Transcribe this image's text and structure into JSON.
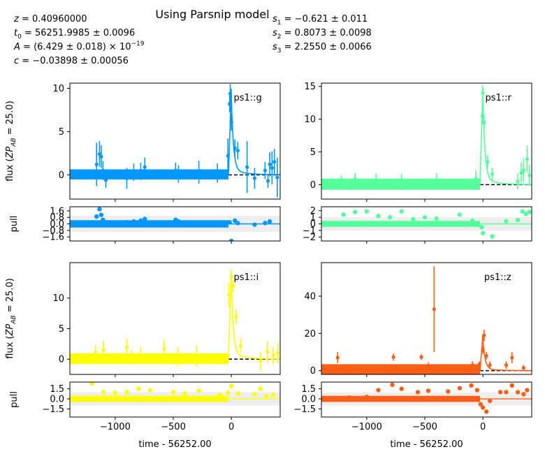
{
  "title": "Using Parsnip model",
  "params_left": [
    {
      "name": "z",
      "text": "= 0.40960000"
    },
    {
      "name": "t",
      "sub": "0",
      "text": "= 56251.9985 ± 0.0096"
    },
    {
      "name": "A",
      "text": "= (6.429 ± 0.018) × 10",
      "sup": "−19"
    },
    {
      "name": "c",
      "text": "= −0.03898 ± 0.00056"
    }
  ],
  "params_right": [
    {
      "name": "s",
      "sub": "1",
      "text": "= −0.621 ± 0.011"
    },
    {
      "name": "s",
      "sub": "2",
      "text": "= 0.8073 ± 0.0098"
    },
    {
      "name": "s",
      "sub": "3",
      "text": "= 2.2550 ± 0.0066"
    }
  ],
  "flux_label": {
    "prefix": "flux (",
    "zp": "ZP",
    "sub": "AB",
    "suffix": " = 25.0)"
  },
  "pull_label": "pull",
  "xlabel": "time - 56252.00",
  "chart_data": [
    {
      "type": "scatter",
      "band": "ps1::g",
      "color": "#0096ff",
      "xlim": [
        -1390,
        420
      ],
      "ylim": [
        -2.8,
        10.6
      ],
      "yticks": [
        0,
        5,
        10
      ],
      "pull_ylim": [
        -2.1,
        2.1
      ],
      "pull_yticks": [
        1.6,
        0.8,
        0.0,
        -0.8,
        -1.6
      ],
      "pull_tick_labels": [
        "1.6",
        "0.8",
        "0.0",
        "−0.8",
        "−1.6"
      ],
      "points": [
        [
          -1160,
          1.2,
          2.5
        ],
        [
          -1135,
          2.4,
          1.5
        ],
        [
          -1120,
          2.1,
          1.3
        ],
        [
          -1105,
          0.5,
          1.1
        ],
        [
          -1080,
          -0.6,
          0.9
        ],
        [
          -900,
          -0.4,
          1.2
        ],
        [
          -840,
          0.3,
          1.0
        ],
        [
          -780,
          0.4,
          1.0
        ],
        [
          -745,
          0.9,
          1.1
        ],
        [
          -480,
          0.5,
          0.9
        ],
        [
          -455,
          0.1,
          1.0
        ],
        [
          -280,
          0.3,
          1.3
        ],
        [
          -120,
          0.2,
          1.1
        ],
        [
          -30,
          2.2,
          2.0
        ],
        [
          -15,
          8.2,
          1.0
        ],
        [
          -10,
          9.4,
          1.1
        ],
        [
          0,
          6.1,
          1.0
        ],
        [
          30,
          3.1,
          1.0
        ],
        [
          55,
          2.8,
          1.0
        ],
        [
          135,
          0.9,
          3.0
        ],
        [
          200,
          -0.4,
          1.2
        ],
        [
          290,
          0.5,
          1.0
        ],
        [
          315,
          -0.7,
          0.8
        ],
        [
          330,
          1.2,
          1.4
        ],
        [
          350,
          0.8,
          1.9
        ],
        [
          370,
          1.5,
          1.5
        ],
        [
          395,
          -0.3,
          2.3
        ]
      ],
      "pull_points": [
        [
          -1160,
          0.9
        ],
        [
          -1135,
          1.8
        ],
        [
          -1120,
          1.1
        ],
        [
          -1105,
          0.5
        ],
        [
          -1080,
          0.0
        ],
        [
          -900,
          0.2
        ],
        [
          -840,
          0.3
        ],
        [
          -780,
          0.4
        ],
        [
          -745,
          0.6
        ],
        [
          -480,
          0.5
        ],
        [
          -455,
          0.3
        ],
        [
          -280,
          0.1
        ],
        [
          -120,
          0.1
        ],
        [
          -15,
          0.2
        ],
        [
          0,
          -2.1
        ],
        [
          30,
          0.4
        ],
        [
          55,
          0.1
        ],
        [
          200,
          -0.1
        ],
        [
          290,
          0.1
        ],
        [
          330,
          0.3
        ]
      ]
    },
    {
      "type": "scatter",
      "band": "ps1::r",
      "color": "#55ff99",
      "xlim": [
        -1390,
        420
      ],
      "ylim": [
        -2.2,
        15.5
      ],
      "yticks": [
        0,
        5,
        10,
        15
      ],
      "pull_ylim": [
        -2.6,
        2.6
      ],
      "pull_yticks": [
        2,
        1,
        0,
        -1,
        -2
      ],
      "pull_tick_labels": [
        "2",
        "1",
        "0",
        "−1",
        "−2"
      ],
      "points": [
        [
          -1220,
          0.3,
          1.1
        ],
        [
          -1100,
          0.8,
          1.0
        ],
        [
          -920,
          0.6,
          1.1
        ],
        [
          -700,
          0.4,
          1.2
        ],
        [
          -400,
          0.7,
          1.0
        ],
        [
          -60,
          0.9,
          1.3
        ],
        [
          -5,
          10.5,
          1.3
        ],
        [
          0,
          14.0,
          1.1
        ],
        [
          10,
          9.5,
          1.1
        ],
        [
          40,
          3.5,
          1.0
        ],
        [
          80,
          1.6,
          1.0
        ],
        [
          300,
          0.5,
          1.2
        ],
        [
          330,
          1.8,
          1.5
        ],
        [
          350,
          2.2,
          1.8
        ],
        [
          380,
          3.9,
          2.0
        ],
        [
          400,
          1.4,
          1.6
        ]
      ],
      "pull_points": [
        [
          -1200,
          1.4
        ],
        [
          -1100,
          1.8
        ],
        [
          -1000,
          1.9
        ],
        [
          -900,
          1.2
        ],
        [
          -800,
          1.0
        ],
        [
          -700,
          1.9
        ],
        [
          -600,
          0.7
        ],
        [
          -500,
          1.0
        ],
        [
          -400,
          0.8
        ],
        [
          -200,
          1.4
        ],
        [
          -90,
          0.5
        ],
        [
          -10,
          -0.5
        ],
        [
          0,
          -1.4
        ],
        [
          80,
          -1.9
        ],
        [
          200,
          0.4
        ],
        [
          300,
          0.6
        ],
        [
          340,
          1.9
        ],
        [
          370,
          1.5
        ],
        [
          400,
          1.8
        ]
      ]
    },
    {
      "type": "scatter",
      "band": "ps1::i",
      "color": "#ffff00",
      "xlim": [
        -1390,
        420
      ],
      "ylim": [
        -2.5,
        15.8
      ],
      "yticks": [
        0,
        5,
        10
      ],
      "pull_ylim": [
        -2.7,
        2.5
      ],
      "pull_yticks": [
        1.5,
        0.0,
        -1.5
      ],
      "pull_tick_labels": [
        "1.5",
        "0.0",
        "−1.5"
      ],
      "points": [
        [
          -1170,
          1.1,
          1.2
        ],
        [
          -1100,
          1.5,
          1.5
        ],
        [
          -900,
          1.9,
          1.4
        ],
        [
          -860,
          0.3,
          1.1
        ],
        [
          -780,
          0.6,
          1.3
        ],
        [
          -580,
          1.7,
          1.5
        ],
        [
          -460,
          0.4,
          1.5
        ],
        [
          -300,
          0.5,
          1.7
        ],
        [
          -20,
          10.5,
          2.0
        ],
        [
          0,
          13.5,
          1.1
        ],
        [
          15,
          12.0,
          1.0
        ],
        [
          40,
          7.0,
          1.2
        ],
        [
          80,
          2.2,
          1.2
        ],
        [
          250,
          -0.3,
          1.5
        ],
        [
          310,
          1.2,
          1.8
        ],
        [
          360,
          0.6,
          1.4
        ],
        [
          400,
          1.0,
          1.6
        ]
      ],
      "pull_points": [
        [
          -1200,
          2.3
        ],
        [
          -1100,
          1.0
        ],
        [
          -1000,
          0.9
        ],
        [
          -900,
          1.0
        ],
        [
          -800,
          1.5
        ],
        [
          -700,
          1.3
        ],
        [
          -500,
          1.0
        ],
        [
          -400,
          0.8
        ],
        [
          -280,
          1.2
        ],
        [
          -100,
          0.6
        ],
        [
          -30,
          0.9
        ],
        [
          0,
          1.9
        ],
        [
          60,
          0.8
        ],
        [
          200,
          0.7
        ],
        [
          250,
          1.5
        ],
        [
          300,
          0.4
        ],
        [
          360,
          0.6
        ]
      ]
    },
    {
      "type": "scatter",
      "band": "ps1::z",
      "color": "#ff5f14",
      "xlim": [
        -1390,
        420
      ],
      "ylim": [
        -2.0,
        58.0
      ],
      "yticks": [
        0,
        20,
        40
      ],
      "pull_ylim": [
        -2.7,
        2.5
      ],
      "pull_yticks": [
        1.5,
        0.0,
        -1.5
      ],
      "pull_tick_labels": [
        "1.5",
        "0.0",
        "−1.5"
      ],
      "points": [
        [
          -1250,
          7.0,
          3.0
        ],
        [
          -1050,
          1.5,
          1.5
        ],
        [
          -770,
          7.3,
          2.0
        ],
        [
          -530,
          7.3,
          1.5
        ],
        [
          -470,
          2.5,
          2.0
        ],
        [
          -420,
          33.0,
          23.0
        ],
        [
          -360,
          1.0,
          2.0
        ],
        [
          -90,
          3.0,
          2.0
        ],
        [
          -30,
          3.5,
          1.5
        ],
        [
          0,
          11.0,
          2.0
        ],
        [
          10,
          19.0,
          3.0
        ],
        [
          30,
          8.0,
          2.0
        ],
        [
          60,
          3.0,
          2.0
        ],
        [
          200,
          3.0,
          2.0
        ],
        [
          250,
          7.0,
          3.0
        ],
        [
          350,
          1.5,
          1.5
        ]
      ],
      "pull_points": [
        [
          -1250,
          0.1
        ],
        [
          -1150,
          0.2
        ],
        [
          -1000,
          0.3
        ],
        [
          -900,
          1.3
        ],
        [
          -780,
          2.1
        ],
        [
          -700,
          1.5
        ],
        [
          -560,
          1.0
        ],
        [
          -470,
          1.2
        ],
        [
          -300,
          1.1
        ],
        [
          -200,
          1.6
        ],
        [
          -100,
          2.0
        ],
        [
          -50,
          1.3
        ],
        [
          -20,
          -0.8
        ],
        [
          0,
          -1.3
        ],
        [
          30,
          -1.9
        ],
        [
          60,
          -0.3
        ],
        [
          150,
          1.0
        ],
        [
          200,
          1.0
        ],
        [
          250,
          2.0
        ],
        [
          300,
          1.0
        ],
        [
          350,
          0.7
        ],
        [
          380,
          1.3
        ]
      ]
    }
  ],
  "xticks": [
    -1000,
    -500,
    0
  ],
  "xtick_labels": [
    "−1000",
    "−500",
    "0"
  ]
}
